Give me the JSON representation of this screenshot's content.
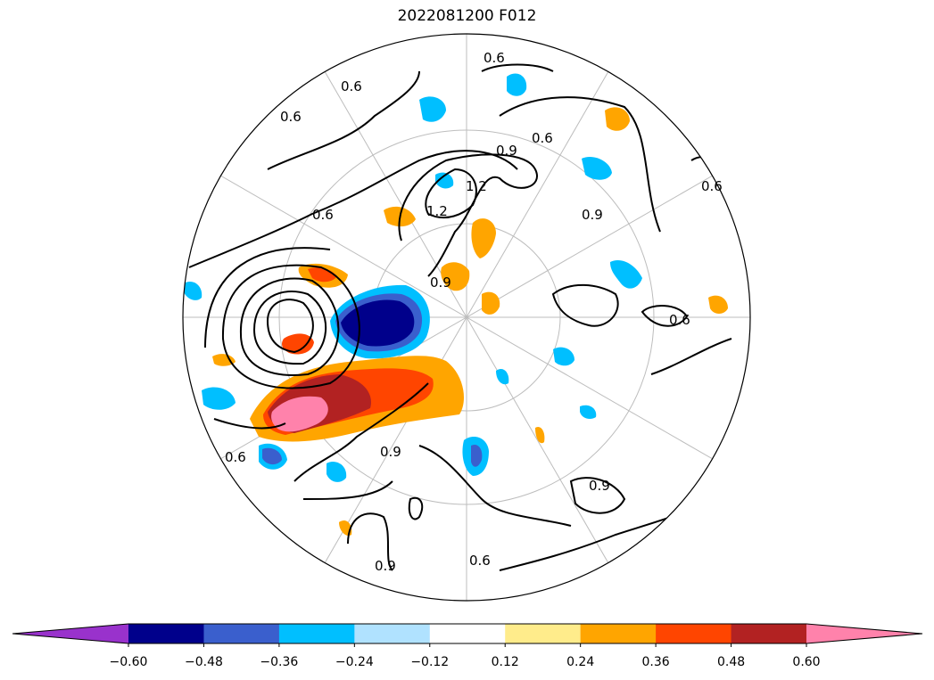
{
  "title": "2022081200 F012",
  "map": {
    "projection": "north-polar-stereographic",
    "contour_labels": [
      "0.6",
      "0.6",
      "0.6",
      "0.6",
      "0.6",
      "0.6",
      "0.6",
      "0.6",
      "0.6",
      "0.9",
      "0.9",
      "0.9",
      "0.9",
      "0.9",
      "0.9",
      "1.2",
      "1.2"
    ]
  },
  "colorbar": {
    "extend": "both",
    "tick_labels": [
      "−0.60",
      "−0.48",
      "−0.36",
      "−0.24",
      "−0.12",
      "0.12",
      "0.24",
      "0.36",
      "0.48",
      "0.60"
    ],
    "colors": [
      "#9932cc",
      "#00008b",
      "#3a5fcd",
      "#00bfff",
      "#b0e2ff",
      "#ffffff",
      "#ffec8b",
      "#ffa500",
      "#ff4500",
      "#b22222",
      "#ff82ab"
    ]
  }
}
